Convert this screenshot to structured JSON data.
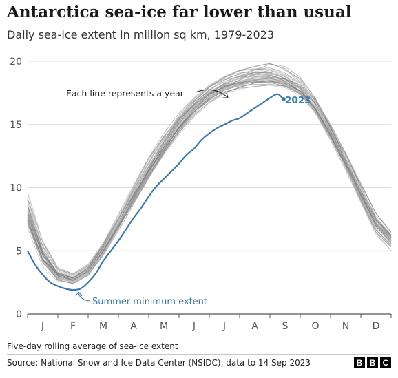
{
  "header": {
    "title": "Antarctica sea-ice far lower than usual",
    "subtitle": "Daily sea-ice extent in million sq km, 1979-2023"
  },
  "footer": {
    "footnote": "Five-day rolling average of sea-ice extent",
    "source": "Source: National Snow and Ice Data Center (NSIDC), data to 14 Sep 2023",
    "logo_letters": [
      "B",
      "B",
      "C"
    ]
  },
  "colors": {
    "highlight": "#3a7ab5",
    "history": "#7f7f7f",
    "grid": "#d9d9d9",
    "axis": "#555555"
  },
  "chart_data": {
    "type": "line",
    "title": "Antarctica sea-ice far lower than usual",
    "subtitle": "Daily sea-ice extent in million sq km, 1979-2023",
    "x_unit": "month",
    "xlabel": "",
    "ylabel": "",
    "ylim": [
      0,
      20
    ],
    "yticks": [
      0,
      5,
      10,
      15,
      20
    ],
    "grid": true,
    "x_ticks": [
      "J",
      "F",
      "M",
      "A",
      "M",
      "J",
      "J",
      "A",
      "S",
      "O",
      "N",
      "D"
    ],
    "annotations": {
      "history_label": "Each line represents a year",
      "highlight_label": "2023",
      "minimum_label": "Summer minimum extent"
    },
    "history_band": {
      "x": [
        0,
        0.5,
        1,
        1.5,
        2,
        2.5,
        3,
        3.5,
        4,
        4.5,
        5,
        5.5,
        6,
        6.5,
        7,
        7.5,
        8,
        8.5,
        9,
        9.5,
        10,
        10.5,
        11,
        11.5,
        12
      ],
      "min": [
        6.8,
        3.7,
        2.4,
        2.3,
        3.0,
        4.6,
        6.6,
        8.6,
        10.6,
        12.5,
        14.2,
        15.6,
        16.7,
        17.4,
        17.8,
        18.0,
        18.1,
        17.9,
        17.3,
        15.8,
        13.6,
        11.3,
        8.8,
        6.3,
        5.0
      ],
      "mean": [
        7.6,
        4.5,
        3.1,
        2.7,
        3.4,
        5.1,
        7.2,
        9.3,
        11.4,
        13.2,
        14.9,
        16.3,
        17.3,
        18.0,
        18.4,
        18.7,
        18.7,
        18.4,
        17.7,
        16.3,
        14.3,
        12.0,
        9.5,
        7.2,
        6.0
      ],
      "max": [
        9.6,
        5.8,
        3.7,
        3.2,
        4.0,
        5.8,
        8.0,
        10.2,
        12.4,
        14.3,
        15.9,
        17.1,
        18.1,
        18.8,
        19.3,
        19.6,
        19.9,
        19.6,
        18.8,
        17.3,
        15.2,
        12.9,
        10.4,
        8.0,
        6.5
      ]
    },
    "series": [
      {
        "name": "2023",
        "x": [
          0,
          0.25,
          0.5,
          0.75,
          1,
          1.25,
          1.5,
          1.75,
          2,
          2.25,
          2.5,
          2.75,
          3,
          3.25,
          3.5,
          3.75,
          4,
          4.25,
          4.5,
          4.75,
          5,
          5.25,
          5.5,
          5.75,
          6,
          6.25,
          6.5,
          6.75,
          7,
          7.25,
          7.5,
          7.75,
          8,
          8.25,
          8.45
        ],
        "y": [
          5.0,
          3.9,
          3.1,
          2.5,
          2.2,
          2.0,
          1.9,
          2.0,
          2.5,
          3.2,
          4.2,
          5.0,
          5.8,
          6.7,
          7.6,
          8.4,
          9.3,
          10.1,
          10.7,
          11.3,
          11.9,
          12.6,
          13.1,
          13.8,
          14.3,
          14.7,
          15.0,
          15.3,
          15.5,
          15.9,
          16.3,
          16.7,
          17.1,
          17.4,
          17.0
        ]
      }
    ]
  }
}
